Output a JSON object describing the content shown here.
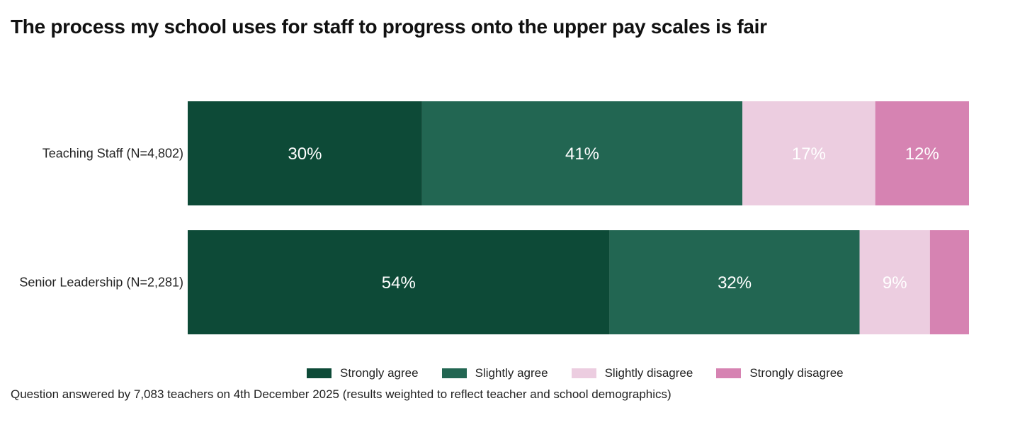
{
  "chart_data": {
    "type": "bar",
    "orientation": "horizontal",
    "stacked": true,
    "title": "The process my school uses for staff to progress onto the upper pay scales is fair",
    "categories": [
      "Teaching Staff (N=4,802)",
      "Senior Leadership (N=2,281)"
    ],
    "series": [
      {
        "name": "Strongly agree",
        "color": "#0d4a37",
        "values": [
          30,
          54
        ],
        "labels": [
          "30%",
          "54%"
        ],
        "label_color": "#ffffff"
      },
      {
        "name": "Slightly agree",
        "color": "#226652",
        "values": [
          41,
          32
        ],
        "labels": [
          "41%",
          "32%"
        ],
        "label_color": "#ffffff"
      },
      {
        "name": "Slightly disagree",
        "color": "#eccde0",
        "values": [
          17,
          9
        ],
        "labels": [
          "17%",
          "9%"
        ],
        "label_color": "#1a1a1a"
      },
      {
        "name": "Strongly disagree",
        "color": "#d683b2",
        "values": [
          12,
          5
        ],
        "labels": [
          "12%",
          ""
        ],
        "label_color": "#1a1a1a"
      }
    ],
    "xlim": [
      0,
      100
    ],
    "legend_position": "bottom",
    "grid": false
  },
  "footnote": "Question answered by 7,083 teachers on 4th December 2025 (results weighted to reflect teacher and school demographics)"
}
